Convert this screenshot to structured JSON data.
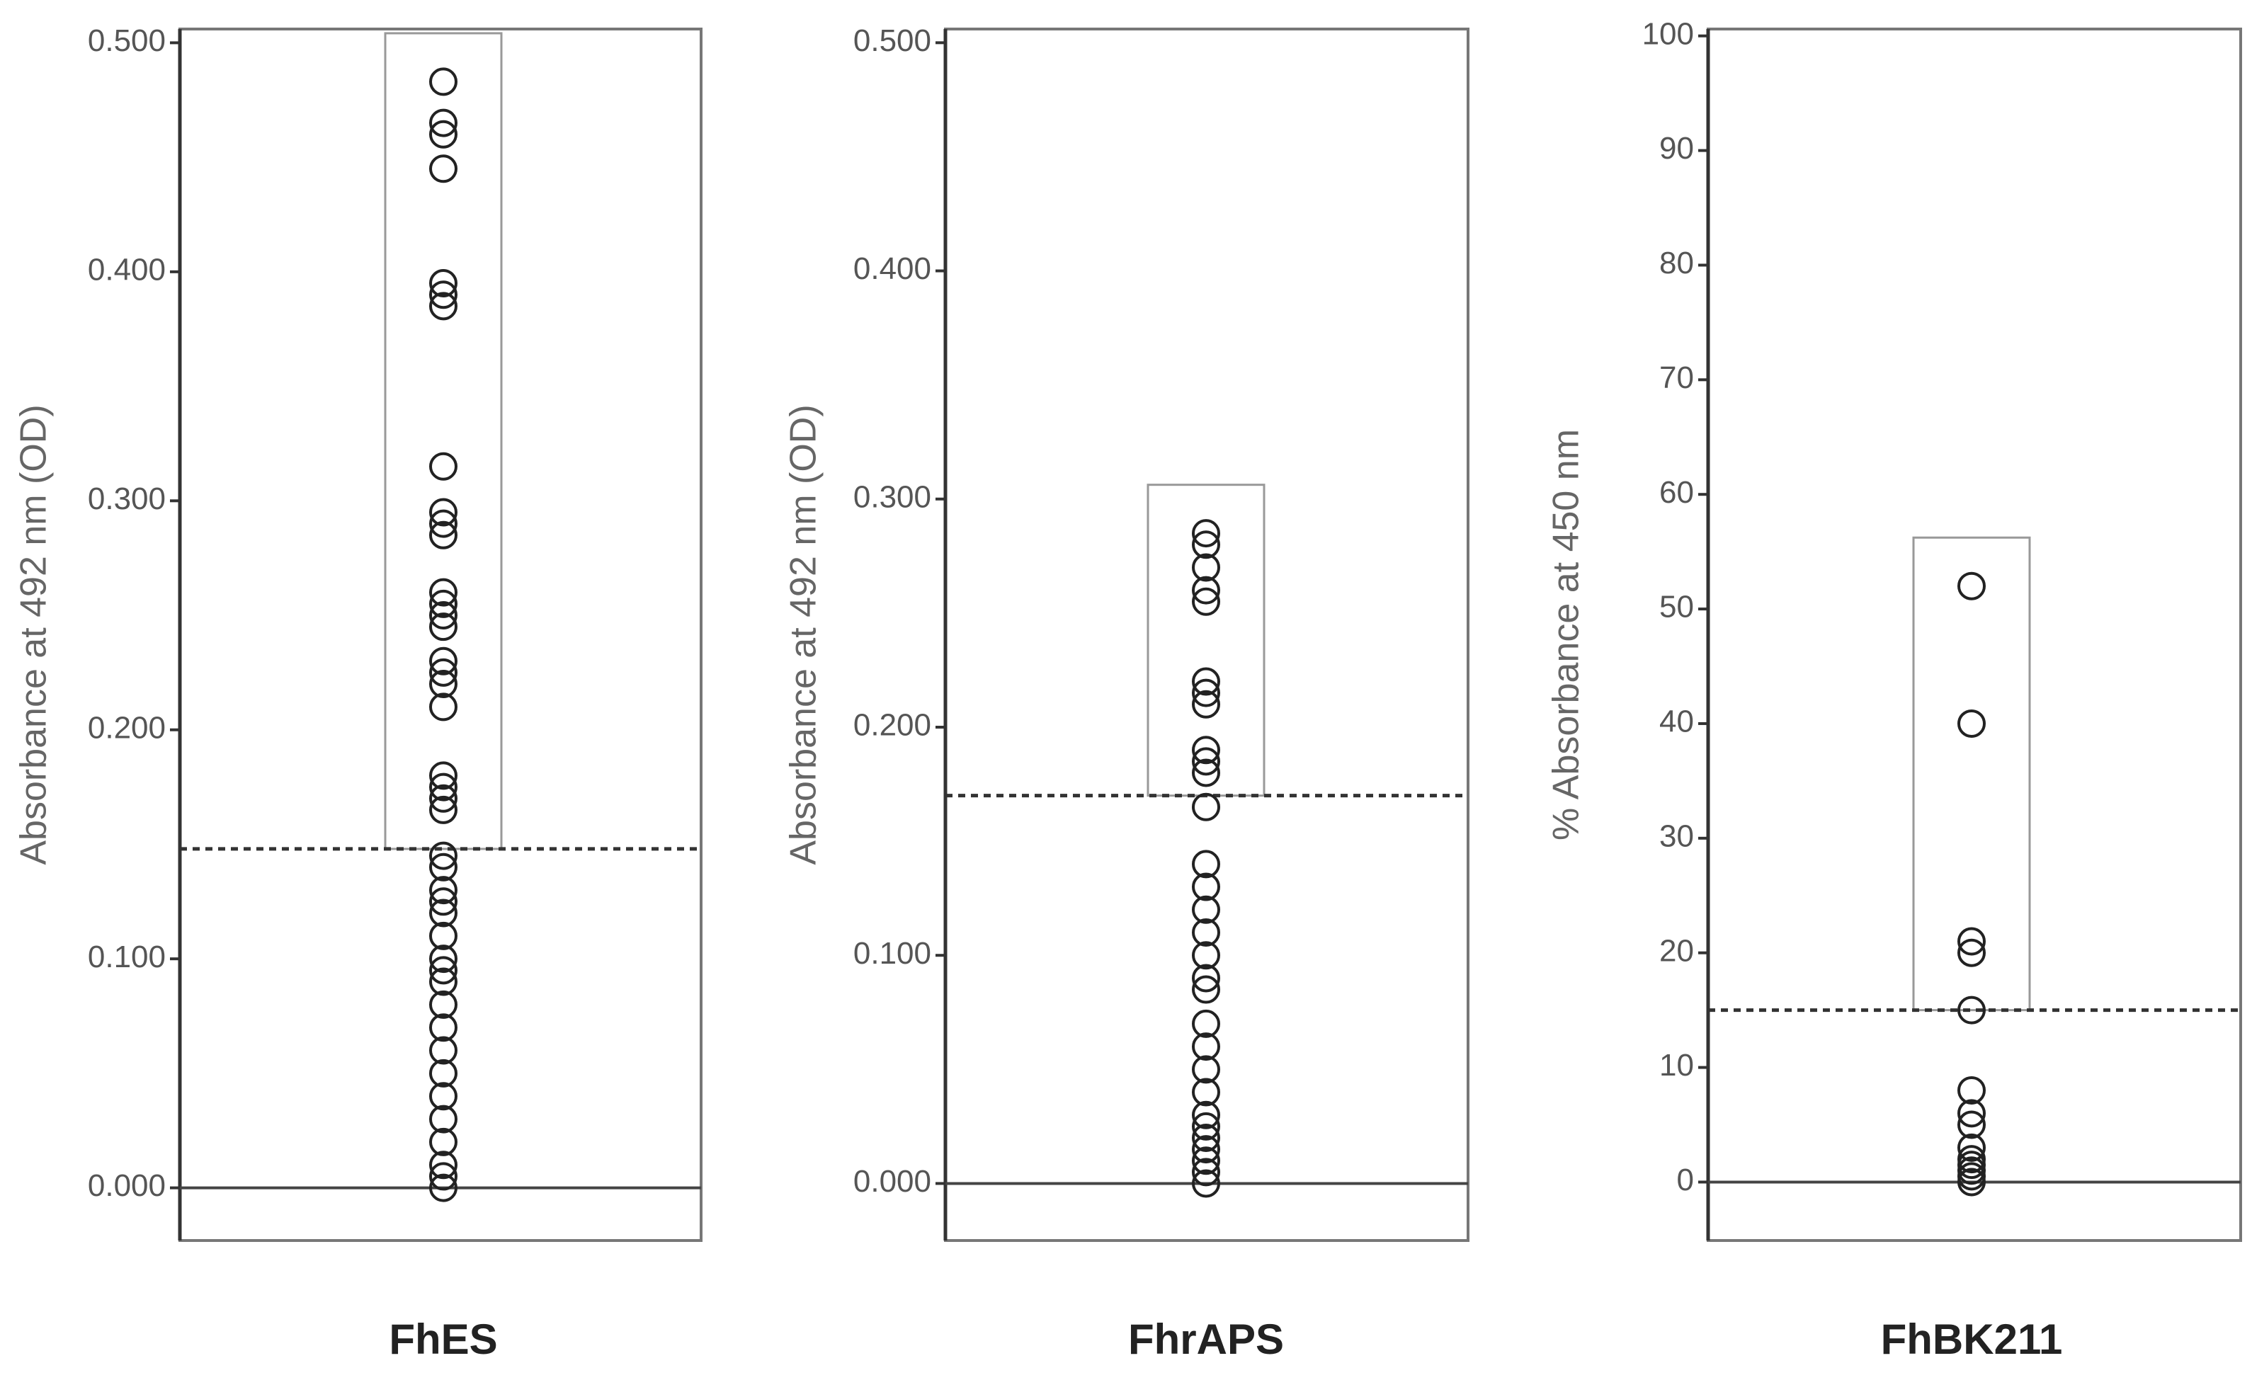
{
  "chart_data": [
    {
      "type": "scatter",
      "xlabel": "FhES",
      "ylabel": "Absorbance at 492 nm (OD)",
      "color": "#222222",
      "ylim": [
        -0.023,
        0.506
      ],
      "yticks": [
        {
          "value": 0,
          "label": "0.000"
        },
        {
          "value": 0.1,
          "label": "0.100"
        },
        {
          "value": 0.2,
          "label": "0.200"
        },
        {
          "value": 0.3,
          "label": "0.300"
        },
        {
          "value": 0.4,
          "label": "0.400"
        },
        {
          "value": 0.5,
          "label": "0.500"
        }
      ],
      "cutoff": 0.148,
      "values": [
        0.483,
        0.465,
        0.46,
        0.445,
        0.395,
        0.39,
        0.385,
        0.315,
        0.295,
        0.29,
        0.285,
        0.26,
        0.255,
        0.25,
        0.245,
        0.23,
        0.225,
        0.22,
        0.21,
        0.18,
        0.175,
        0.17,
        0.165,
        0.145,
        0.14,
        0.13,
        0.125,
        0.12,
        0.11,
        0.1,
        0.095,
        0.09,
        0.08,
        0.07,
        0.06,
        0.05,
        0.04,
        0.03,
        0.02,
        0.01,
        0.005,
        0
      ]
    },
    {
      "type": "scatter",
      "xlabel": "FhrAPS",
      "ylabel": "Absorbance at 492 nm (OD)",
      "color": "#222222",
      "ylim": [
        -0.025,
        0.506
      ],
      "yticks": [
        {
          "value": 0,
          "label": "0.000"
        },
        {
          "value": 0.1,
          "label": "0.100"
        },
        {
          "value": 0.2,
          "label": "0.200"
        },
        {
          "value": 0.3,
          "label": "0.300"
        },
        {
          "value": 0.4,
          "label": "0.400"
        },
        {
          "value": 0.5,
          "label": "0.500"
        }
      ],
      "cutoff": 0.17,
      "values": [
        0.285,
        0.28,
        0.27,
        0.26,
        0.255,
        0.22,
        0.215,
        0.21,
        0.19,
        0.185,
        0.18,
        0.165,
        0.14,
        0.13,
        0.12,
        0.11,
        0.1,
        0.09,
        0.085,
        0.07,
        0.06,
        0.05,
        0.04,
        0.03,
        0.025,
        0.02,
        0.015,
        0.01,
        0.005,
        0
      ]
    },
    {
      "type": "scatter",
      "xlabel": "FhBK211",
      "ylabel": "% Absorbance at 450 nm",
      "color": "#222222",
      "ylim": [
        -5.1,
        100.6
      ],
      "yticks": [
        0,
        10,
        20,
        30,
        40,
        50,
        60,
        70,
        80,
        90,
        100
      ],
      "cutoff": 15,
      "values": [
        52,
        40,
        21,
        20,
        15,
        8,
        6,
        5,
        3,
        2,
        1.5,
        1,
        0.5,
        0
      ]
    }
  ]
}
